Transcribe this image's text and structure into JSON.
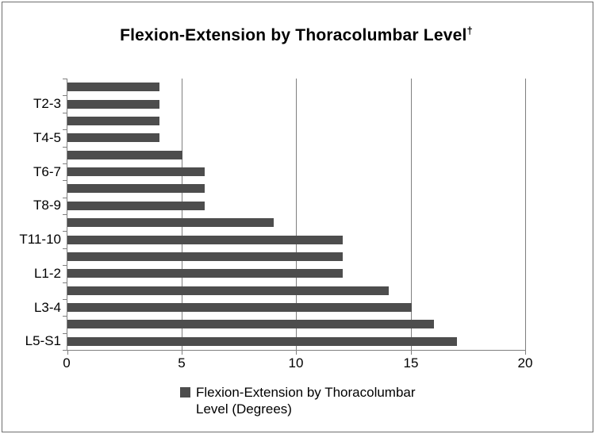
{
  "chart_data": {
    "type": "bar",
    "orientation": "horizontal",
    "title": "Flexion-Extension by Thoracolumbar Level",
    "title_superscript": "†",
    "values": [
      4,
      4,
      4,
      4,
      5,
      6,
      6,
      6,
      9,
      12,
      12,
      12,
      14,
      15,
      16,
      17
    ],
    "category_labels": [
      "T2-3",
      "T4-5",
      "T6-7",
      "T8-9",
      "T11-10",
      "L1-2",
      "L3-4",
      "L5-S1"
    ],
    "category_label_every_n_bars": 2,
    "x_ticks": [
      "0",
      "5",
      "10",
      "15",
      "20"
    ],
    "xlim": [
      0,
      20
    ],
    "xlabel": "",
    "ylabel": "",
    "grid": "vertical gridlines at each x tick",
    "legend_position": "bottom",
    "legend": {
      "swatch_color": "#4d4d4d",
      "label": "Flexion-Extension by Thoracolumbar Level (Degrees)",
      "label_lines": [
        "Flexion-Extension by Thoracolumbar",
        "Level (Degrees)"
      ]
    },
    "bar_color": "#4d4d4d",
    "axis_color": "#7f7f7f",
    "background_color": "#ffffff"
  }
}
